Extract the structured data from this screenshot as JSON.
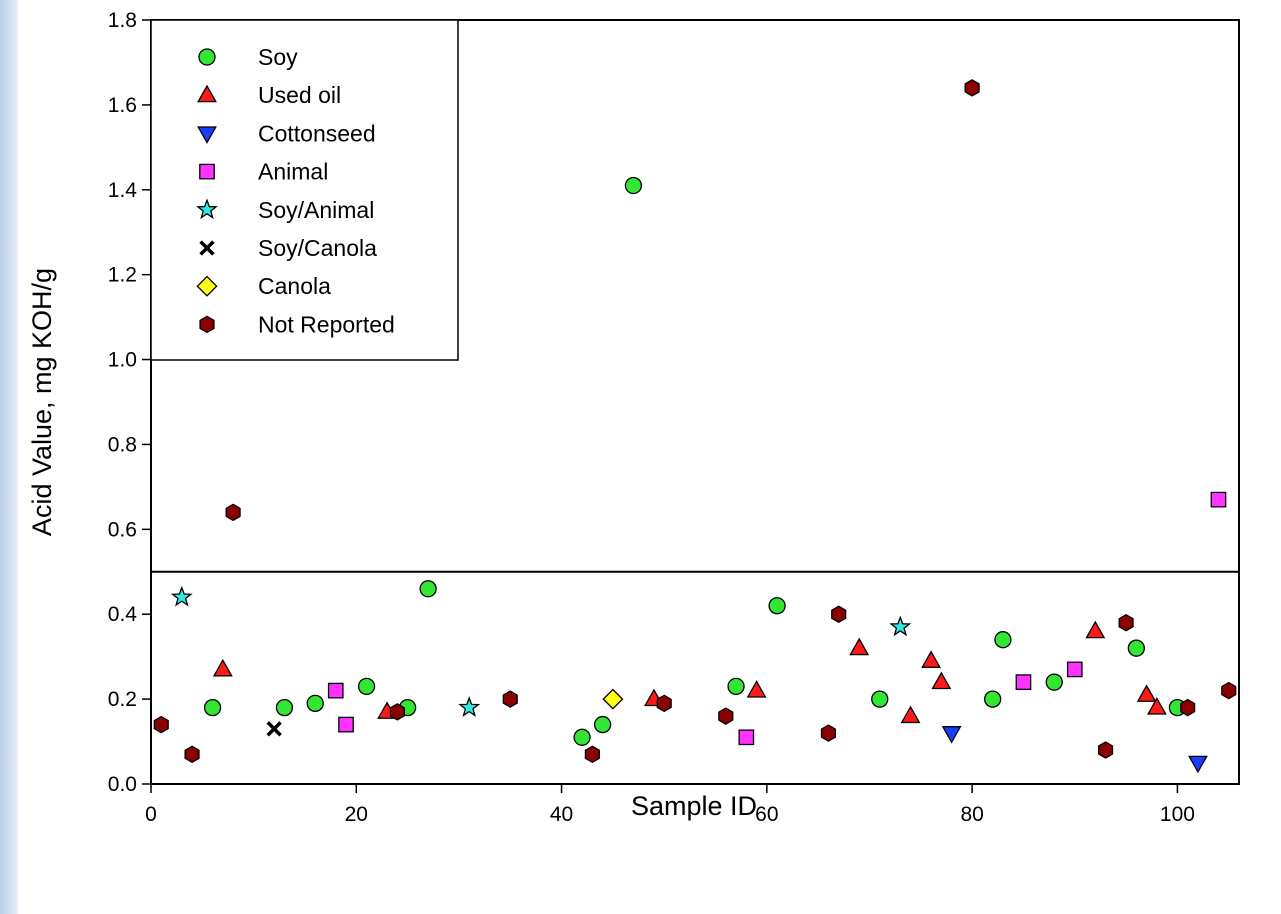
{
  "chart_data": {
    "type": "scatter",
    "xlabel": "Sample ID",
    "ylabel": "Acid Value, mg KOH/g",
    "xlim": [
      0,
      106
    ],
    "ylim": [
      0,
      1.8
    ],
    "xticks": [
      "0",
      "20",
      "40",
      "60",
      "80",
      "100"
    ],
    "yticks": [
      "0.0",
      "0.2",
      "0.4",
      "0.6",
      "0.8",
      "1.0",
      "1.2",
      "1.4",
      "1.6",
      "1.8"
    ],
    "reference_line": 0.5,
    "grid": false,
    "legend_position": "top-left",
    "series": [
      {
        "name": "Soy",
        "marker": "circle",
        "color": "#33e633",
        "points": [
          [
            6,
            0.18
          ],
          [
            13,
            0.18
          ],
          [
            16,
            0.19
          ],
          [
            21,
            0.23
          ],
          [
            25,
            0.18
          ],
          [
            27,
            0.46
          ],
          [
            42,
            0.11
          ],
          [
            44,
            0.14
          ],
          [
            47,
            1.41
          ],
          [
            57,
            0.23
          ],
          [
            61,
            0.42
          ],
          [
            71,
            0.2
          ],
          [
            82,
            0.2
          ],
          [
            83,
            0.34
          ],
          [
            88,
            0.24
          ],
          [
            96,
            0.32
          ],
          [
            100,
            0.18
          ]
        ]
      },
      {
        "name": "Used oil",
        "marker": "triangle-up",
        "color": "#ff1a1a",
        "points": [
          [
            7,
            0.27
          ],
          [
            23,
            0.17
          ],
          [
            49,
            0.2
          ],
          [
            59,
            0.22
          ],
          [
            69,
            0.32
          ],
          [
            74,
            0.16
          ],
          [
            76,
            0.29
          ],
          [
            77,
            0.24
          ],
          [
            92,
            0.36
          ],
          [
            97,
            0.21
          ],
          [
            98,
            0.18
          ]
        ]
      },
      {
        "name": "Cottonseed",
        "marker": "triangle-down",
        "color": "#1a3dff",
        "points": [
          [
            78,
            0.12
          ],
          [
            102,
            0.05
          ]
        ]
      },
      {
        "name": "Animal",
        "marker": "square",
        "color": "#ff33ff",
        "points": [
          [
            18,
            0.22
          ],
          [
            19,
            0.14
          ],
          [
            58,
            0.11
          ],
          [
            85,
            0.24
          ],
          [
            90,
            0.27
          ],
          [
            104,
            0.67
          ]
        ]
      },
      {
        "name": "Soy/Animal",
        "marker": "star",
        "color": "#33e6e6",
        "points": [
          [
            3,
            0.44
          ],
          [
            31,
            0.18
          ],
          [
            73,
            0.37
          ]
        ]
      },
      {
        "name": "Soy/Canola",
        "marker": "x",
        "color": "#000000",
        "points": [
          [
            12,
            0.13
          ]
        ]
      },
      {
        "name": "Canola",
        "marker": "diamond",
        "color": "#ffff1a",
        "points": [
          [
            45,
            0.2
          ]
        ]
      },
      {
        "name": "Not Reported",
        "marker": "hexagon",
        "color": "#8b0000",
        "points": [
          [
            1,
            0.14
          ],
          [
            4,
            0.07
          ],
          [
            8,
            0.64
          ],
          [
            24,
            0.17
          ],
          [
            35,
            0.2
          ],
          [
            43,
            0.07
          ],
          [
            50,
            0.19
          ],
          [
            56,
            0.16
          ],
          [
            66,
            0.12
          ],
          [
            67,
            0.4
          ],
          [
            80,
            1.64
          ],
          [
            93,
            0.08
          ],
          [
            95,
            0.38
          ],
          [
            101,
            0.18
          ],
          [
            105,
            0.22
          ]
        ]
      }
    ]
  }
}
